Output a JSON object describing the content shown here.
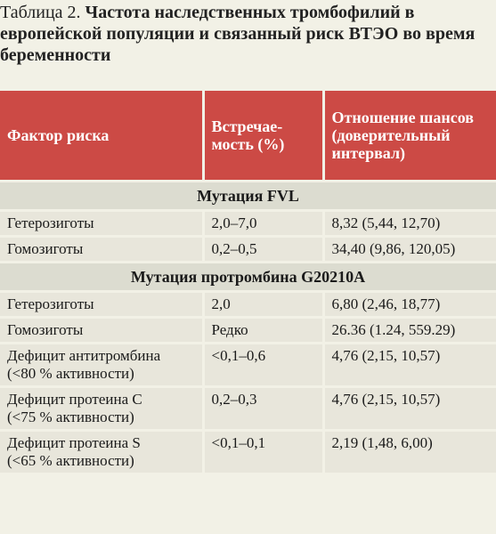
{
  "caption": {
    "label": "Таблица 2.",
    "title": "Частота наследственных тромбофилий в европейской популяции и связанный риск ВТЭО во время беременности"
  },
  "headers": {
    "factor": "Фактор риска",
    "frequency": "Встречае-мость (%)",
    "odds": "Отношение шансов (доверительный интервал)"
  },
  "sections": {
    "fvl": "Мутация FVL",
    "prothrombin": "Мутация протромбина G20210A"
  },
  "rows": {
    "fvl_het": {
      "factor": "Гетерозиготы",
      "frequency": "2,0–7,0",
      "odds": "8,32 (5,44, 12,70)"
    },
    "fvl_hom": {
      "factor": "Гомозиготы",
      "frequency": "0,2–0,5",
      "odds": "34,40 (9,86, 120,05)"
    },
    "pt_het": {
      "factor": "Гетерозиготы",
      "frequency": "2,0",
      "odds": "6,80 (2,46, 18,77)"
    },
    "pt_hom": {
      "factor": "Гомозиготы",
      "frequency": "Редко",
      "odds": "26.36 (1.24, 559.29)"
    },
    "at": {
      "factor_line1": "Дефицит антитромбина",
      "factor_line2": "(<80 % активности)",
      "frequency": "<0,1–0,6",
      "odds": "4,76 (2,15, 10,57)"
    },
    "pc": {
      "factor_line1": "Дефицит протеина C",
      "factor_line2": "(<75 % активности)",
      "frequency": "0,2–0,3",
      "odds": "4,76 (2,15, 10,57)"
    },
    "ps": {
      "factor_line1": "Дефицит протеина S",
      "factor_line2": "(<65 % активности)",
      "frequency": "<0,1–0,1",
      "odds": "2,19 (1,48, 6,00)"
    }
  }
}
